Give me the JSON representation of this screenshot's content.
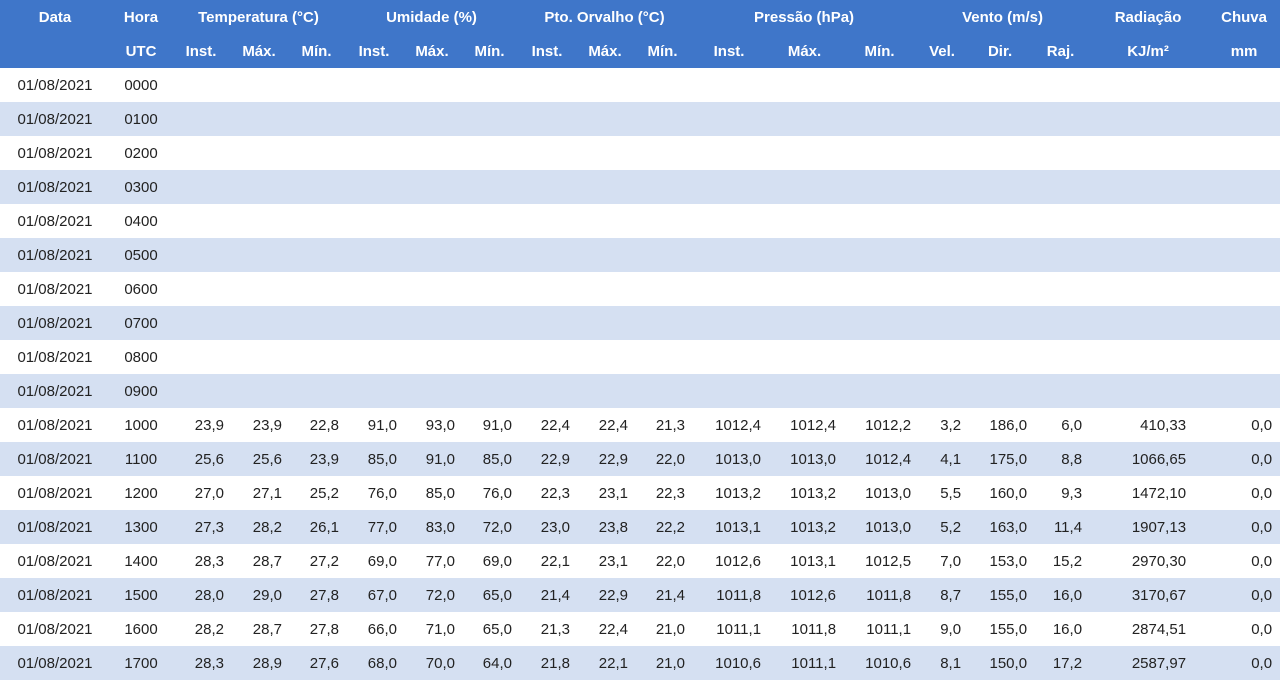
{
  "header": {
    "row1": {
      "data": "Data",
      "hora": "Hora",
      "temperatura": "Temperatura (°C)",
      "umidade": "Umidade (%)",
      "orvalho": "Pto. Orvalho (°C)",
      "pressao": "Pressão (hPa)",
      "vento": "Vento (m/s)",
      "radiacao": "Radiação",
      "chuva": "Chuva"
    },
    "row2": {
      "data": "",
      "hora": "UTC",
      "temp_inst": "Inst.",
      "temp_max": "Máx.",
      "temp_min": "Mín.",
      "umid_inst": "Inst.",
      "umid_max": "Máx.",
      "umid_min": "Mín.",
      "orv_inst": "Inst.",
      "orv_max": "Máx.",
      "orv_min": "Mín.",
      "pres_inst": "Inst.",
      "pres_max": "Máx.",
      "pres_min": "Mín.",
      "vento_vel": "Vel.",
      "vento_dir": "Dir.",
      "vento_raj": "Raj.",
      "radiacao_unit": "KJ/m²",
      "chuva_unit": "mm"
    }
  },
  "rows": [
    [
      "01/08/2021",
      "0000",
      "",
      "",
      "",
      "",
      "",
      "",
      "",
      "",
      "",
      "",
      "",
      "",
      "",
      "",
      "",
      "",
      ""
    ],
    [
      "01/08/2021",
      "0100",
      "",
      "",
      "",
      "",
      "",
      "",
      "",
      "",
      "",
      "",
      "",
      "",
      "",
      "",
      "",
      "",
      ""
    ],
    [
      "01/08/2021",
      "0200",
      "",
      "",
      "",
      "",
      "",
      "",
      "",
      "",
      "",
      "",
      "",
      "",
      "",
      "",
      "",
      "",
      ""
    ],
    [
      "01/08/2021",
      "0300",
      "",
      "",
      "",
      "",
      "",
      "",
      "",
      "",
      "",
      "",
      "",
      "",
      "",
      "",
      "",
      "",
      ""
    ],
    [
      "01/08/2021",
      "0400",
      "",
      "",
      "",
      "",
      "",
      "",
      "",
      "",
      "",
      "",
      "",
      "",
      "",
      "",
      "",
      "",
      ""
    ],
    [
      "01/08/2021",
      "0500",
      "",
      "",
      "",
      "",
      "",
      "",
      "",
      "",
      "",
      "",
      "",
      "",
      "",
      "",
      "",
      "",
      ""
    ],
    [
      "01/08/2021",
      "0600",
      "",
      "",
      "",
      "",
      "",
      "",
      "",
      "",
      "",
      "",
      "",
      "",
      "",
      "",
      "",
      "",
      ""
    ],
    [
      "01/08/2021",
      "0700",
      "",
      "",
      "",
      "",
      "",
      "",
      "",
      "",
      "",
      "",
      "",
      "",
      "",
      "",
      "",
      "",
      ""
    ],
    [
      "01/08/2021",
      "0800",
      "",
      "",
      "",
      "",
      "",
      "",
      "",
      "",
      "",
      "",
      "",
      "",
      "",
      "",
      "",
      "",
      ""
    ],
    [
      "01/08/2021",
      "0900",
      "",
      "",
      "",
      "",
      "",
      "",
      "",
      "",
      "",
      "",
      "",
      "",
      "",
      "",
      "",
      "",
      ""
    ],
    [
      "01/08/2021",
      "1000",
      "23,9",
      "23,9",
      "22,8",
      "91,0",
      "93,0",
      "91,0",
      "22,4",
      "22,4",
      "21,3",
      "1012,4",
      "1012,4",
      "1012,2",
      "3,2",
      "186,0",
      "6,0",
      "410,33",
      "0,0"
    ],
    [
      "01/08/2021",
      "1100",
      "25,6",
      "25,6",
      "23,9",
      "85,0",
      "91,0",
      "85,0",
      "22,9",
      "22,9",
      "22,0",
      "1013,0",
      "1013,0",
      "1012,4",
      "4,1",
      "175,0",
      "8,8",
      "1066,65",
      "0,0"
    ],
    [
      "01/08/2021",
      "1200",
      "27,0",
      "27,1",
      "25,2",
      "76,0",
      "85,0",
      "76,0",
      "22,3",
      "23,1",
      "22,3",
      "1013,2",
      "1013,2",
      "1013,0",
      "5,5",
      "160,0",
      "9,3",
      "1472,10",
      "0,0"
    ],
    [
      "01/08/2021",
      "1300",
      "27,3",
      "28,2",
      "26,1",
      "77,0",
      "83,0",
      "72,0",
      "23,0",
      "23,8",
      "22,2",
      "1013,1",
      "1013,2",
      "1013,0",
      "5,2",
      "163,0",
      "11,4",
      "1907,13",
      "0,0"
    ],
    [
      "01/08/2021",
      "1400",
      "28,3",
      "28,7",
      "27,2",
      "69,0",
      "77,0",
      "69,0",
      "22,1",
      "23,1",
      "22,0",
      "1012,6",
      "1013,1",
      "1012,5",
      "7,0",
      "153,0",
      "15,2",
      "2970,30",
      "0,0"
    ],
    [
      "01/08/2021",
      "1500",
      "28,0",
      "29,0",
      "27,8",
      "67,0",
      "72,0",
      "65,0",
      "21,4",
      "22,9",
      "21,4",
      "1011,8",
      "1012,6",
      "1011,8",
      "8,7",
      "155,0",
      "16,0",
      "3170,67",
      "0,0"
    ],
    [
      "01/08/2021",
      "1600",
      "28,2",
      "28,7",
      "27,8",
      "66,0",
      "71,0",
      "65,0",
      "21,3",
      "22,4",
      "21,0",
      "1011,1",
      "1011,8",
      "1011,1",
      "9,0",
      "155,0",
      "16,0",
      "2874,51",
      "0,0"
    ],
    [
      "01/08/2021",
      "1700",
      "28,3",
      "28,9",
      "27,6",
      "68,0",
      "70,0",
      "64,0",
      "21,8",
      "22,1",
      "21,0",
      "1010,6",
      "1011,1",
      "1010,6",
      "8,1",
      "150,0",
      "17,2",
      "2587,97",
      "0,0"
    ]
  ],
  "colors": {
    "header_bg": "#3f76c9",
    "header_text": "#ffffff",
    "row_alt_bg": "#d5e0f2",
    "row_bg": "#ffffff"
  }
}
